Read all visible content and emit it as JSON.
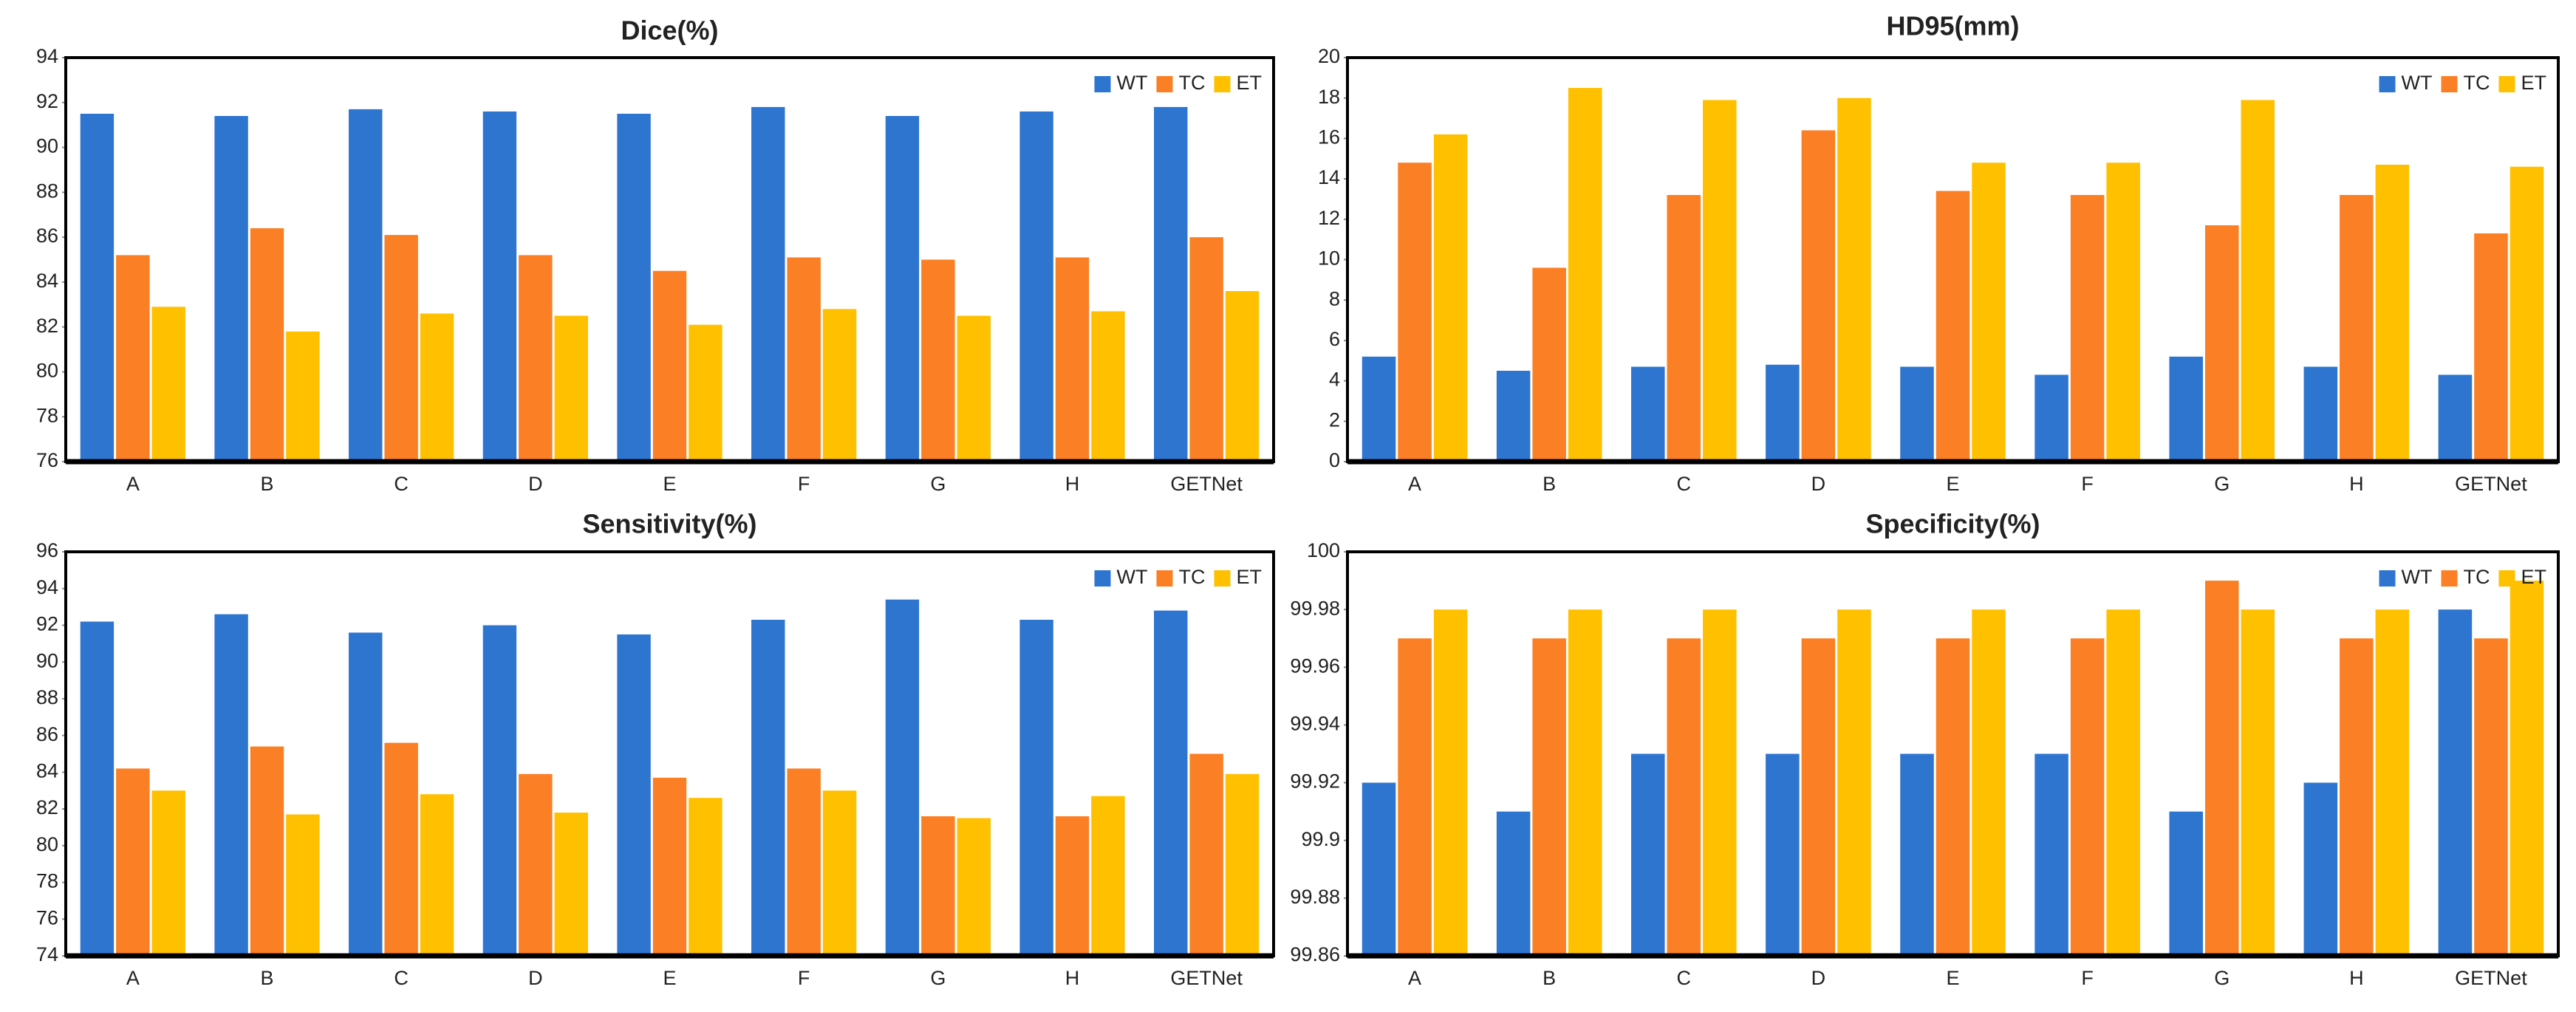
{
  "chart_data": [
    {
      "type": "bar",
      "title": "Dice(%)",
      "categories": [
        "A",
        "B",
        "C",
        "D",
        "E",
        "F",
        "G",
        "H",
        "GETNet"
      ],
      "series": [
        {
          "name": "WT",
          "color": "#2e75d0",
          "values": [
            91.5,
            91.4,
            91.7,
            91.6,
            91.5,
            91.8,
            91.4,
            91.6,
            91.8
          ]
        },
        {
          "name": "TC",
          "color": "#fb7f24",
          "values": [
            85.2,
            86.4,
            86.1,
            85.2,
            84.5,
            85.1,
            85.0,
            85.1,
            86.0
          ]
        },
        {
          "name": "ET",
          "color": "#ffc000",
          "values": [
            82.9,
            81.8,
            82.6,
            82.5,
            82.1,
            82.8,
            82.5,
            82.7,
            83.6
          ]
        }
      ],
      "ylim": [
        76,
        94
      ],
      "yticks": [
        76,
        78,
        80,
        82,
        84,
        86,
        88,
        90,
        92,
        94
      ],
      "legend": "top-right"
    },
    {
      "type": "bar",
      "title": "HD95(mm)",
      "categories": [
        "A",
        "B",
        "C",
        "D",
        "E",
        "F",
        "G",
        "H",
        "GETNet"
      ],
      "series": [
        {
          "name": "WT",
          "color": "#2e75d0",
          "values": [
            5.2,
            4.5,
            4.7,
            4.8,
            4.7,
            4.3,
            5.2,
            4.7,
            4.3
          ]
        },
        {
          "name": "TC",
          "color": "#fb7f24",
          "values": [
            14.8,
            9.6,
            13.2,
            16.4,
            13.4,
            13.2,
            11.7,
            13.2,
            11.3
          ]
        },
        {
          "name": "ET",
          "color": "#ffc000",
          "values": [
            16.2,
            18.5,
            17.9,
            18.0,
            14.8,
            14.8,
            17.9,
            14.7,
            14.6
          ]
        }
      ],
      "ylim": [
        0,
        20
      ],
      "yticks": [
        0,
        2,
        4,
        6,
        8,
        10,
        12,
        14,
        16,
        18,
        20
      ],
      "legend": "top-right"
    },
    {
      "type": "bar",
      "title": "Sensitivity(%)",
      "categories": [
        "A",
        "B",
        "C",
        "D",
        "E",
        "F",
        "G",
        "H",
        "GETNet"
      ],
      "series": [
        {
          "name": "WT",
          "color": "#2e75d0",
          "values": [
            92.2,
            92.6,
            91.6,
            92.0,
            91.5,
            92.3,
            93.4,
            92.3,
            92.8
          ]
        },
        {
          "name": "TC",
          "color": "#fb7f24",
          "values": [
            84.2,
            85.4,
            85.6,
            83.9,
            83.7,
            84.2,
            81.6,
            81.6,
            85.0
          ]
        },
        {
          "name": "ET",
          "color": "#ffc000",
          "values": [
            83.0,
            81.7,
            82.8,
            81.8,
            82.6,
            83.0,
            81.5,
            82.7,
            83.9
          ]
        }
      ],
      "ylim": [
        74,
        96
      ],
      "yticks": [
        74,
        76,
        78,
        80,
        82,
        84,
        86,
        88,
        90,
        92,
        94,
        96
      ],
      "legend": "top-right"
    },
    {
      "type": "bar",
      "title": "Specificity(%)",
      "categories": [
        "A",
        "B",
        "C",
        "D",
        "E",
        "F",
        "G",
        "H",
        "GETNet"
      ],
      "series": [
        {
          "name": "WT",
          "color": "#2e75d0",
          "values": [
            99.92,
            99.91,
            99.93,
            99.93,
            99.93,
            99.93,
            99.91,
            99.92,
            99.98
          ]
        },
        {
          "name": "TC",
          "color": "#fb7f24",
          "values": [
            99.97,
            99.97,
            99.97,
            99.97,
            99.97,
            99.97,
            99.99,
            99.97,
            99.97
          ]
        },
        {
          "name": "ET",
          "color": "#ffc000",
          "values": [
            99.98,
            99.98,
            99.98,
            99.98,
            99.98,
            99.98,
            99.98,
            99.98,
            99.99
          ]
        }
      ],
      "ylim": [
        99.86,
        100
      ],
      "yticks": [
        99.86,
        99.88,
        99.9,
        99.92,
        99.94,
        99.96,
        99.98,
        100
      ],
      "legend": "top-right"
    }
  ]
}
